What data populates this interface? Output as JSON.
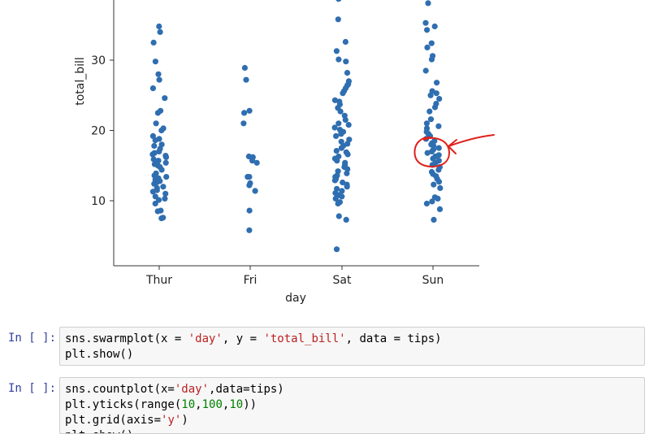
{
  "chart_data": {
    "type": "scatter",
    "xlabel": "day",
    "ylabel": "total_bill",
    "categories": [
      "Thur",
      "Fri",
      "Sat",
      "Sun"
    ],
    "yticks": [
      10,
      20,
      30
    ],
    "ylim": [
      1,
      39
    ],
    "colors": {
      "points": "#2f6eb0",
      "annotation": "#e0201c"
    },
    "points": [
      [
        0,
        34.8
      ],
      [
        0,
        34.0
      ],
      [
        0,
        32.5
      ],
      [
        0,
        29.8
      ],
      [
        0,
        28.0
      ],
      [
        0,
        27.2
      ],
      [
        0,
        26.0
      ],
      [
        0,
        24.6
      ],
      [
        0,
        22.8
      ],
      [
        0,
        22.5
      ],
      [
        0,
        21.0
      ],
      [
        0,
        20.3
      ],
      [
        0,
        20.0
      ],
      [
        0,
        19.2
      ],
      [
        0,
        18.8
      ],
      [
        0,
        18.6
      ],
      [
        0,
        18.0
      ],
      [
        0,
        17.8
      ],
      [
        0,
        17.4
      ],
      [
        0,
        17.0
      ],
      [
        0,
        16.8
      ],
      [
        0,
        16.6
      ],
      [
        0,
        16.4
      ],
      [
        0,
        16.2
      ],
      [
        0,
        15.9
      ],
      [
        0,
        15.7
      ],
      [
        0,
        15.4
      ],
      [
        0,
        15.2
      ],
      [
        0,
        15.0
      ],
      [
        0,
        14.8
      ],
      [
        0,
        14.4
      ],
      [
        0,
        13.9
      ],
      [
        0,
        13.6
      ],
      [
        0,
        13.4
      ],
      [
        0,
        13.2
      ],
      [
        0,
        13.0
      ],
      [
        0,
        12.8
      ],
      [
        0,
        12.6
      ],
      [
        0,
        12.4
      ],
      [
        0,
        12.0
      ],
      [
        0,
        11.8
      ],
      [
        0,
        11.5
      ],
      [
        0,
        11.3
      ],
      [
        0,
        11.0
      ],
      [
        0,
        10.6
      ],
      [
        0,
        10.3
      ],
      [
        0,
        10.1
      ],
      [
        0,
        9.6
      ],
      [
        0,
        8.6
      ],
      [
        0,
        8.5
      ],
      [
        0,
        7.6
      ],
      [
        0,
        7.5
      ],
      [
        1,
        28.9
      ],
      [
        1,
        27.2
      ],
      [
        1,
        22.8
      ],
      [
        1,
        22.5
      ],
      [
        1,
        21.0
      ],
      [
        1,
        16.3
      ],
      [
        1,
        16.2
      ],
      [
        1,
        15.7
      ],
      [
        1,
        15.4
      ],
      [
        1,
        13.4
      ],
      [
        1,
        13.4
      ],
      [
        1,
        12.5
      ],
      [
        1,
        12.2
      ],
      [
        1,
        11.4
      ],
      [
        1,
        8.6
      ],
      [
        1,
        5.8
      ],
      [
        2,
        38.7
      ],
      [
        2,
        35.8
      ],
      [
        2,
        32.6
      ],
      [
        2,
        31.3
      ],
      [
        2,
        30.1
      ],
      [
        2,
        29.8
      ],
      [
        2,
        28.2
      ],
      [
        2,
        27.0
      ],
      [
        2,
        26.6
      ],
      [
        2,
        26.4
      ],
      [
        2,
        26.0
      ],
      [
        2,
        25.6
      ],
      [
        2,
        25.3
      ],
      [
        2,
        24.3
      ],
      [
        2,
        24.1
      ],
      [
        2,
        23.7
      ],
      [
        2,
        23.2
      ],
      [
        2,
        22.7
      ],
      [
        2,
        22.1
      ],
      [
        2,
        21.5
      ],
      [
        2,
        21.0
      ],
      [
        2,
        20.8
      ],
      [
        2,
        20.4
      ],
      [
        2,
        20.1
      ],
      [
        2,
        19.8
      ],
      [
        2,
        19.5
      ],
      [
        2,
        19.2
      ],
      [
        2,
        18.7
      ],
      [
        2,
        18.4
      ],
      [
        2,
        18.1
      ],
      [
        2,
        17.8
      ],
      [
        2,
        17.5
      ],
      [
        2,
        17.1
      ],
      [
        2,
        16.9
      ],
      [
        2,
        16.6
      ],
      [
        2,
        16.3
      ],
      [
        2,
        16.0
      ],
      [
        2,
        15.7
      ],
      [
        2,
        15.4
      ],
      [
        2,
        15.1
      ],
      [
        2,
        14.8
      ],
      [
        2,
        14.5
      ],
      [
        2,
        14.2
      ],
      [
        2,
        13.9
      ],
      [
        2,
        13.6
      ],
      [
        2,
        13.4
      ],
      [
        2,
        13.1
      ],
      [
        2,
        12.9
      ],
      [
        2,
        12.6
      ],
      [
        2,
        12.3
      ],
      [
        2,
        12.0
      ],
      [
        2,
        11.7
      ],
      [
        2,
        11.4
      ],
      [
        2,
        11.1
      ],
      [
        2,
        10.8
      ],
      [
        2,
        10.6
      ],
      [
        2,
        10.3
      ],
      [
        2,
        9.8
      ],
      [
        2,
        9.6
      ],
      [
        2,
        7.8
      ],
      [
        2,
        7.3
      ],
      [
        2,
        3.1
      ],
      [
        3,
        38.1
      ],
      [
        3,
        35.3
      ],
      [
        3,
        34.8
      ],
      [
        3,
        34.3
      ],
      [
        3,
        32.4
      ],
      [
        3,
        31.8
      ],
      [
        3,
        30.6
      ],
      [
        3,
        30.1
      ],
      [
        3,
        28.5
      ],
      [
        3,
        26.8
      ],
      [
        3,
        25.6
      ],
      [
        3,
        25.3
      ],
      [
        3,
        25.0
      ],
      [
        3,
        24.5
      ],
      [
        3,
        23.8
      ],
      [
        3,
        23.3
      ],
      [
        3,
        22.7
      ],
      [
        3,
        21.6
      ],
      [
        3,
        21.0
      ],
      [
        3,
        20.6
      ],
      [
        3,
        20.3
      ],
      [
        3,
        19.8
      ],
      [
        3,
        19.5
      ],
      [
        3,
        19.2
      ],
      [
        3,
        18.8
      ],
      [
        3,
        18.5
      ],
      [
        3,
        18.2
      ],
      [
        3,
        18.0
      ],
      [
        3,
        17.8
      ],
      [
        3,
        17.5
      ],
      [
        3,
        17.3
      ],
      [
        3,
        17.0
      ],
      [
        3,
        16.8
      ],
      [
        3,
        16.5
      ],
      [
        3,
        16.3
      ],
      [
        3,
        16.0
      ],
      [
        3,
        15.7
      ],
      [
        3,
        15.4
      ],
      [
        3,
        15.1
      ],
      [
        3,
        14.8
      ],
      [
        3,
        14.4
      ],
      [
        3,
        14.1
      ],
      [
        3,
        13.8
      ],
      [
        3,
        13.5
      ],
      [
        3,
        13.1
      ],
      [
        3,
        12.7
      ],
      [
        3,
        12.3
      ],
      [
        3,
        11.8
      ],
      [
        3,
        10.5
      ],
      [
        3,
        10.3
      ],
      [
        3,
        9.9
      ],
      [
        3,
        9.6
      ],
      [
        3,
        8.8
      ],
      [
        3,
        7.3
      ]
    ]
  },
  "cells": [
    {
      "prompt": "In [ ]:",
      "lines": [
        [
          {
            "t": "sns.swarmplot(x = ",
            "c": "kw"
          },
          {
            "t": "'day'",
            "c": "str"
          },
          {
            "t": ", y = ",
            "c": "kw"
          },
          {
            "t": "'total_bill'",
            "c": "str"
          },
          {
            "t": ", data = tips)",
            "c": "kw"
          }
        ],
        [
          {
            "t": "plt.show()",
            "c": "kw"
          }
        ]
      ]
    },
    {
      "prompt": "In [ ]:",
      "lines": [
        [
          {
            "t": "sns.countplot(x=",
            "c": "kw"
          },
          {
            "t": "'day'",
            "c": "str"
          },
          {
            "t": ",data=tips)",
            "c": "kw"
          }
        ],
        [
          {
            "t": "plt.yticks(range(",
            "c": "kw"
          },
          {
            "t": "10",
            "c": "num"
          },
          {
            "t": ",",
            "c": "kw"
          },
          {
            "t": "100",
            "c": "num"
          },
          {
            "t": ",",
            "c": "kw"
          },
          {
            "t": "10",
            "c": "num"
          },
          {
            "t": "))",
            "c": "kw"
          }
        ],
        [
          {
            "t": "plt.grid(axis=",
            "c": "kw"
          },
          {
            "t": "'y'",
            "c": "str"
          },
          {
            "t": ")",
            "c": "kw"
          }
        ],
        [
          {
            "t": "plt.show()",
            "c": "kw"
          }
        ]
      ]
    }
  ]
}
